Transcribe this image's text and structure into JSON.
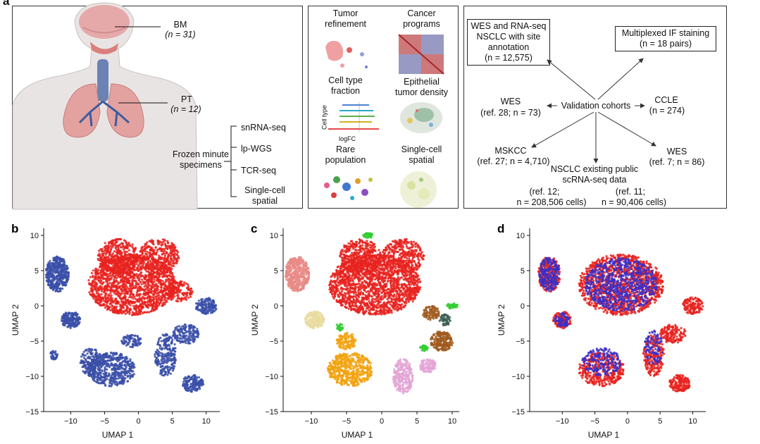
{
  "panel_a": {
    "label": "a",
    "sites": [
      {
        "name": "BM",
        "n": "(n = 31)"
      },
      {
        "name": "PT",
        "n": "(n = 12)"
      }
    ],
    "frozen_label": [
      "Frozen minute",
      "specimens"
    ],
    "assays": [
      "snRNA-seq",
      "lp-WGS",
      "TCR-seq",
      "Single-cell",
      "spatial"
    ]
  },
  "panel_analyses": {
    "items": [
      [
        "Tumor",
        "refinement"
      ],
      [
        "Cancer",
        "programs"
      ],
      [
        "Cell type",
        "fraction"
      ],
      [
        "Epithelial",
        "tumor density"
      ],
      [
        "Rare",
        "population"
      ],
      [
        "Single-cell",
        "spatial"
      ]
    ],
    "mini_axis": {
      "y": "Cell type",
      "x": "logFC"
    }
  },
  "panel_validation": {
    "center": "Validation cohorts",
    "wes_rna": [
      "WES and RNA-seq",
      "NSCLC with site",
      "annotation",
      "(n = 12,575)"
    ],
    "multiplex": [
      "Multiplexed IF staining",
      "(n = 18 pairs)"
    ],
    "wes28": [
      "WES",
      "(ref. 28; n = 73)"
    ],
    "ccle": [
      "CCLE",
      "(n = 274)"
    ],
    "mskcc": [
      "MSKCC",
      "(ref. 27; n = 4,710)"
    ],
    "wes7": [
      "WES",
      "(ref. 7; n = 86)"
    ],
    "nsclc": [
      "NSCLC existing public",
      "scRNA-seq data"
    ],
    "ref12": [
      "(ref. 12;",
      "n = 208,506 cells)"
    ],
    "ref11": [
      "(ref. 11;",
      "n = 90,406 cells)"
    ]
  },
  "chart_data": [
    {
      "type": "scatter",
      "panel": "b",
      "title": "",
      "xlabel": "UMAP 1",
      "ylabel": "UMAP 2",
      "xticks": [
        "-10",
        "-5",
        "0",
        "5",
        "10"
      ],
      "yticks": [
        "10",
        "5",
        "0",
        "-5",
        "-10",
        "-15"
      ],
      "xlim": [
        -14,
        12
      ],
      "ylim": [
        -15,
        11
      ],
      "series_colors": [
        "#e8221f",
        "#3a4fa8"
      ]
    },
    {
      "type": "scatter",
      "panel": "c",
      "title": "",
      "xlabel": "UMAP 1",
      "ylabel": "UMAP 2",
      "xticks": [
        "-10",
        "-5",
        "0",
        "5",
        "10"
      ],
      "yticks": [
        "10",
        "5",
        "0",
        "-5",
        "-10",
        "-15"
      ],
      "xlim": [
        -14,
        11
      ],
      "ylim": [
        -15,
        11
      ],
      "series_colors": [
        "#e8221f",
        "#e88a85",
        "#e8dca0",
        "#f2a20f",
        "#a05a1f",
        "#e3a4d6",
        "#33cc33",
        "#3d5f52"
      ]
    },
    {
      "type": "scatter",
      "panel": "d",
      "title": "",
      "xlabel": "UMAP 1",
      "ylabel": "UMAP 2",
      "xticks": [
        "-10",
        "-5",
        "0",
        "5",
        "10"
      ],
      "yticks": [
        "10",
        "5",
        "0",
        "-5",
        "-10",
        "-15"
      ],
      "xlim": [
        -15,
        12
      ],
      "ylim": [
        -15,
        11
      ],
      "series_colors": [
        "#e8221f",
        "#3a2fc8"
      ]
    }
  ]
}
